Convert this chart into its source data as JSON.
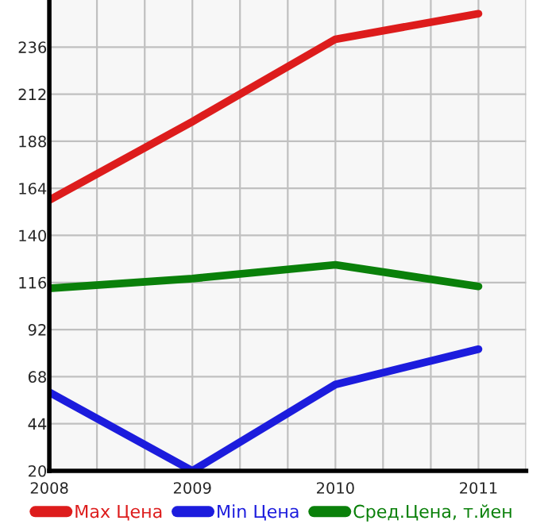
{
  "chart_data": {
    "type": "line",
    "x": [
      2008,
      2009,
      2010,
      2011
    ],
    "series": [
      {
        "name": "Max Цена",
        "color": "#dd1c1c",
        "values": [
          158,
          198,
          240,
          253
        ]
      },
      {
        "name": "Min Цена",
        "color": "#1c1cdd",
        "values": [
          60,
          20,
          64,
          82
        ]
      },
      {
        "name": "Сред.Цена, т.йен",
        "color": "#0a800a",
        "values": [
          113,
          118,
          125,
          114
        ]
      }
    ],
    "xlim": [
      2008,
      2011.333
    ],
    "xticks": [
      2008,
      {
        "value": 2008.333,
        "label": null
      },
      {
        "value": 2008.667,
        "label": null
      },
      2009,
      {
        "value": 2009.333,
        "label": null
      },
      {
        "value": 2009.667,
        "label": null
      },
      2010,
      {
        "value": 2010.333,
        "label": null
      },
      {
        "value": 2010.667,
        "label": null
      },
      2011,
      {
        "value": 2011.333,
        "label": null
      }
    ],
    "ylim": [
      20,
      260
    ],
    "yticks": [
      20,
      44,
      68,
      92,
      116,
      140,
      164,
      188,
      212,
      236
    ],
    "grid": true,
    "legend": "bottom",
    "line_style": "solid",
    "marker": "none"
  }
}
